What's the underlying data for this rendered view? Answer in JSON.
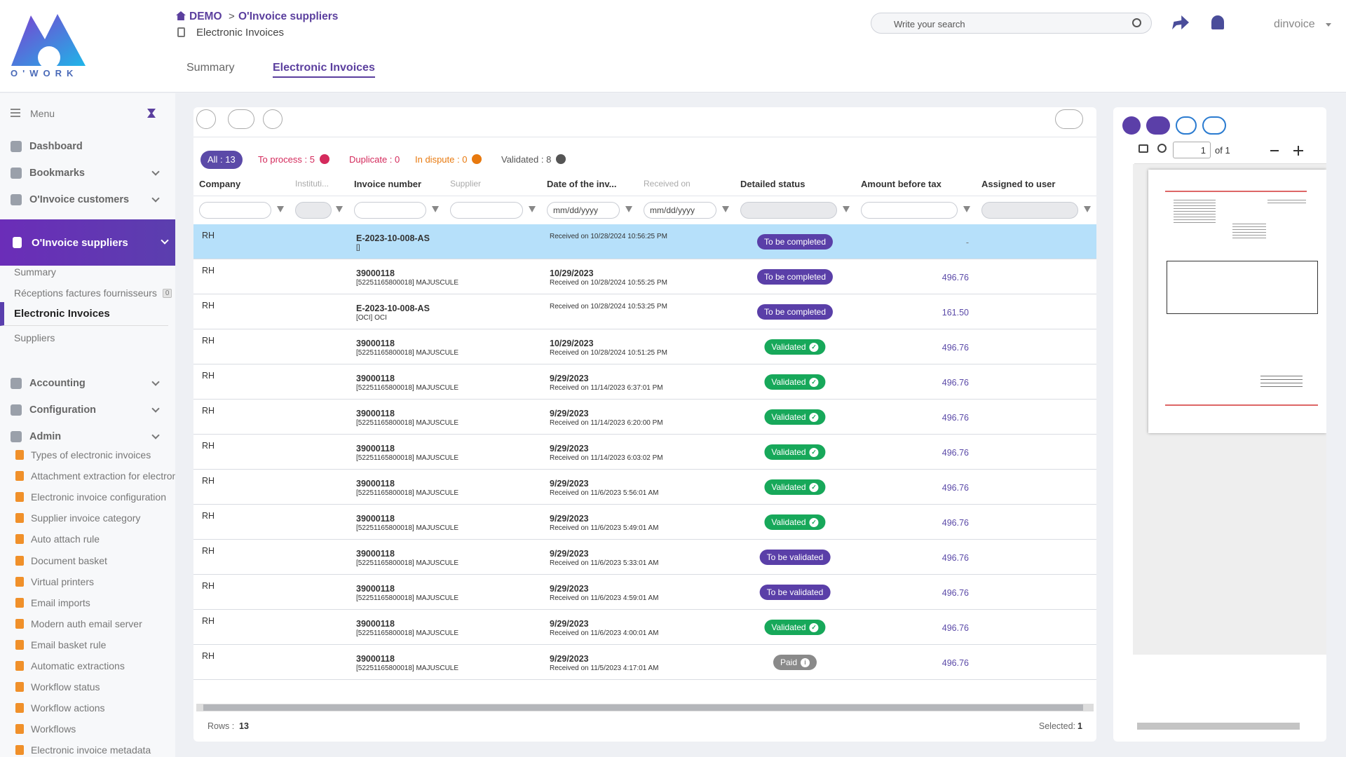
{
  "logo": "O'WORK",
  "breadcrumb": {
    "root": "DEMO",
    "separator": ">",
    "current": "O'Invoice suppliers",
    "subtitle": "Electronic Invoices"
  },
  "search": {
    "placeholder": "Write your search"
  },
  "user": "dinvoice",
  "tabs": [
    "Summary",
    "Electronic Invoices"
  ],
  "active_tab": 1,
  "sidebar": {
    "menu_label": "Menu",
    "child_icon_color": "#f0902a",
    "items": [
      {
        "label": "Dashboard"
      },
      {
        "label": "Bookmarks",
        "expandable": true
      },
      {
        "label": "O'Invoice customers",
        "expandable": true
      },
      {
        "label": "O'Invoice suppliers",
        "expandable": true,
        "active": true,
        "children": [
          {
            "label": "Summary"
          },
          {
            "label": "Réceptions factures fournisseurs",
            "badge": 0
          },
          {
            "label": "Electronic Invoices",
            "active": true
          },
          {
            "label": "Suppliers"
          }
        ]
      },
      {
        "label": "Accounting",
        "expandable": true
      },
      {
        "label": "Configuration",
        "expandable": true
      },
      {
        "label": "Admin",
        "expandable": true,
        "icons": true,
        "children": [
          {
            "label": "Types of electronic invoices"
          },
          {
            "label": "Attachment extraction for electronic invoices"
          },
          {
            "label": "Electronic invoice configuration"
          },
          {
            "label": "Supplier invoice category"
          },
          {
            "label": "Auto attach rule"
          },
          {
            "label": "Document basket"
          },
          {
            "label": "Virtual printers"
          },
          {
            "label": "Email imports"
          },
          {
            "label": "Modern auth email server"
          },
          {
            "label": "Email basket rule"
          },
          {
            "label": "Automatic extractions"
          },
          {
            "label": "Workflow status"
          },
          {
            "label": "Workflow actions"
          },
          {
            "label": "Workflows"
          },
          {
            "label": "Electronic invoice metadata"
          }
        ]
      }
    ]
  },
  "table": {
    "filters": [
      {
        "label": "All : 13",
        "color": "#5b4aa8",
        "active": true
      },
      {
        "label": "To process : 5",
        "color": "#d42a5c",
        "add": true
      },
      {
        "label": "Duplicate : 0",
        "color": "#d42a5c"
      },
      {
        "label": "In dispute : 0",
        "color": "#e8790e",
        "add": true
      },
      {
        "label": "Validated : 8",
        "color": "#555555",
        "add": true
      }
    ],
    "columns": [
      {
        "label": "Company",
        "filter": "text"
      },
      {
        "label": "Instituti...",
        "filter": "short",
        "muted": true
      },
      {
        "label": "Invoice number",
        "filter": "text"
      },
      {
        "label": "Supplier",
        "filter": "text",
        "muted": true
      },
      {
        "label": "Date of the inv...",
        "filter": "date"
      },
      {
        "label": "Received on",
        "filter": "date",
        "muted": true
      },
      {
        "label": "Detailed status",
        "filter": "select"
      },
      {
        "label": "Amount before tax",
        "filter": "text"
      },
      {
        "label": "Assigned to user",
        "filter": "select"
      }
    ],
    "date_placeholder": "mm/dd/yyyy",
    "status_styles": {
      "To be completed": "#5a3fa8",
      "To be validated": "#5a3fa8",
      "Validated": "#17a85a",
      "Paid": "#8a8a8a"
    },
    "status_icons": {
      "Validated": "✓",
      "Paid": "i"
    },
    "rows": [
      {
        "company": "RH",
        "number": "E-2023-10-008-AS",
        "ref": "[]",
        "date": null,
        "received": "Received on 10/28/2024 10:56:25 PM",
        "status": "To be completed",
        "amount": "-",
        "selected": true
      },
      {
        "company": "RH",
        "number": "39000118",
        "ref": "[52251165800018] MAJUSCULE",
        "date": "10/29/2023",
        "received": "Received on 10/28/2024 10:55:25 PM",
        "status": "To be completed",
        "amount": "496.76"
      },
      {
        "company": "RH",
        "number": "E-2023-10-008-AS",
        "ref": "[OCI] OCI",
        "date": null,
        "received": "Received on 10/28/2024 10:53:25 PM",
        "status": "To be completed",
        "amount": "161.50"
      },
      {
        "company": "RH",
        "number": "39000118",
        "ref": "[52251165800018] MAJUSCULE",
        "date": "10/29/2023",
        "received": "Received on 10/28/2024 10:51:25 PM",
        "status": "Validated",
        "amount": "496.76"
      },
      {
        "company": "RH",
        "number": "39000118",
        "ref": "[52251165800018] MAJUSCULE",
        "date": "9/29/2023",
        "received": "Received on 11/14/2023 6:37:01 PM",
        "status": "Validated",
        "amount": "496.76"
      },
      {
        "company": "RH",
        "number": "39000118",
        "ref": "[52251165800018] MAJUSCULE",
        "date": "9/29/2023",
        "received": "Received on 11/14/2023 6:20:00 PM",
        "status": "Validated",
        "amount": "496.76"
      },
      {
        "company": "RH",
        "number": "39000118",
        "ref": "[52251165800018] MAJUSCULE",
        "date": "9/29/2023",
        "received": "Received on 11/14/2023 6:03:02 PM",
        "status": "Validated",
        "amount": "496.76"
      },
      {
        "company": "RH",
        "number": "39000118",
        "ref": "[52251165800018] MAJUSCULE",
        "date": "9/29/2023",
        "received": "Received on 11/6/2023 5:56:01 AM",
        "status": "Validated",
        "amount": "496.76"
      },
      {
        "company": "RH",
        "number": "39000118",
        "ref": "[52251165800018] MAJUSCULE",
        "date": "9/29/2023",
        "received": "Received on 11/6/2023 5:49:01 AM",
        "status": "Validated",
        "amount": "496.76"
      },
      {
        "company": "RH",
        "number": "39000118",
        "ref": "[52251165800018] MAJUSCULE",
        "date": "9/29/2023",
        "received": "Received on 11/6/2023 5:33:01 AM",
        "status": "To be validated",
        "amount": "496.76"
      },
      {
        "company": "RH",
        "number": "39000118",
        "ref": "[52251165800018] MAJUSCULE",
        "date": "9/29/2023",
        "received": "Received on 11/6/2023 4:59:01 AM",
        "status": "To be validated",
        "amount": "496.76"
      },
      {
        "company": "RH",
        "number": "39000118",
        "ref": "[52251165800018] MAJUSCULE",
        "date": "9/29/2023",
        "received": "Received on 11/6/2023 4:00:01 AM",
        "status": "Validated",
        "amount": "496.76"
      },
      {
        "company": "RH",
        "number": "39000118",
        "ref": "[52251165800018] MAJUSCULE",
        "date": "9/29/2023",
        "received": "Received on 11/5/2023 4:17:01 AM",
        "status": "Paid",
        "amount": "496.76"
      }
    ],
    "footer": {
      "rows_label": "Rows :",
      "rows_count": 13,
      "selected_label": "Selected:",
      "selected_count": 1
    }
  },
  "viewer": {
    "page": "1",
    "total": "of 1"
  }
}
